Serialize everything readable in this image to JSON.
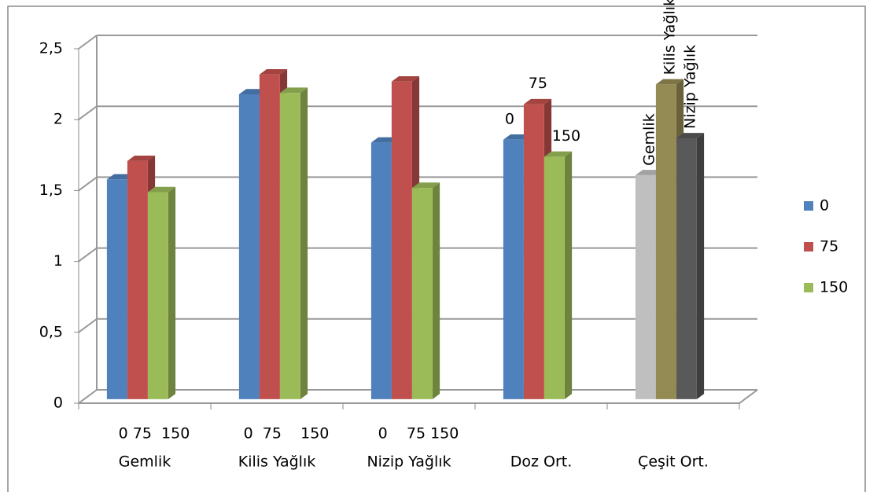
{
  "chart_data": {
    "type": "bar3d",
    "categories": [
      "Gemlik",
      "Kilis Yağlık",
      "Nizip Yağlık",
      "Doz Ort.",
      "Çeşit Ort."
    ],
    "category_sublabels": [
      "0 75  150",
      "0  75    150",
      "0    75 150",
      null,
      null
    ],
    "series": [
      {
        "name": "0",
        "color": "#4f81bd",
        "values": [
          1.55,
          2.15,
          1.81,
          1.83,
          1.58
        ],
        "point_colors": {
          "4": "#bfbfbf"
        }
      },
      {
        "name": "75",
        "color": "#c0504d",
        "values": [
          1.68,
          2.29,
          2.24,
          2.08,
          2.22
        ],
        "point_colors": {
          "4": "#948a54"
        }
      },
      {
        "name": "150",
        "color": "#9bbb59",
        "values": [
          1.46,
          2.16,
          1.49,
          1.71,
          1.84
        ],
        "point_colors": {
          "4": "#595959"
        }
      }
    ],
    "series_name_labels_at": 3,
    "category_name_labels_at": 4,
    "ylim": [
      0,
      2.5
    ],
    "yticks": [
      0,
      {
        "value": 0.5,
        "label": "0,5"
      },
      1,
      {
        "value": 1.5,
        "label": "1,5"
      },
      2,
      {
        "value": 2.5,
        "label": "2,5"
      }
    ],
    "grid": true,
    "legend": "right"
  }
}
